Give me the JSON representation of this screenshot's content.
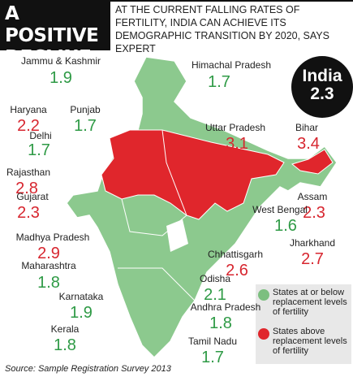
{
  "header": {
    "badge": [
      "A POSITIVE",
      "DECLINE"
    ],
    "subtitle": "AT THE CURRENT FALLING RATES OF FERTILITY, INDIA CAN ACHIEVE ITS DEMOGRAPHIC TRANSITION BY 2020, SAYS EXPERT"
  },
  "national": {
    "label": "India",
    "value": 2.3
  },
  "legend": [
    {
      "label": "States at or below replacement levels of fertility",
      "color": "#7cbf7f"
    },
    {
      "label": "States above replacement levels of fertility",
      "color": "#e0262c"
    }
  ],
  "states": [
    {
      "name": "Jammu & Kashmir",
      "value": 1.9,
      "color": "#2e9a45"
    },
    {
      "name": "Himachal Pradesh",
      "value": 1.7,
      "color": "#2e9a45"
    },
    {
      "name": "Haryana",
      "value": 2.2,
      "color": "#d7262f"
    },
    {
      "name": "Punjab",
      "value": 1.7,
      "color": "#2e9a45"
    },
    {
      "name": "Uttar Pradesh",
      "value": 3.1,
      "color": "#d7262f"
    },
    {
      "name": "Bihar",
      "value": 3.4,
      "color": "#d7262f"
    },
    {
      "name": "Delhi",
      "value": 1.7,
      "color": "#2e9a45"
    },
    {
      "name": "Rajasthan",
      "value": 2.8,
      "color": "#d7262f"
    },
    {
      "name": "Assam",
      "value": 2.3,
      "color": "#d7262f"
    },
    {
      "name": "Gujarat",
      "value": 2.3,
      "color": "#d7262f"
    },
    {
      "name": "West Bengal",
      "value": 1.6,
      "color": "#2e9a45"
    },
    {
      "name": "Madhya Pradesh",
      "value": 2.9,
      "color": "#d7262f"
    },
    {
      "name": "Jharkhand",
      "value": 2.7,
      "color": "#d7262f"
    },
    {
      "name": "Chhattisgarh",
      "value": 2.6,
      "color": "#d7262f"
    },
    {
      "name": "Maharashtra",
      "value": 1.8,
      "color": "#2e9a45"
    },
    {
      "name": "Odisha",
      "value": 2.1,
      "color": "#2e9a45"
    },
    {
      "name": "Karnataka",
      "value": 1.9,
      "color": "#2e9a45"
    },
    {
      "name": "Andhra Pradesh",
      "value": 1.8,
      "color": "#2e9a45"
    },
    {
      "name": "Kerala",
      "value": 1.8,
      "color": "#2e9a45"
    },
    {
      "name": "Tamil Nadu",
      "value": 1.7,
      "color": "#2e9a45"
    }
  ],
  "source": "Source: Sample Registration Survey 2013"
}
